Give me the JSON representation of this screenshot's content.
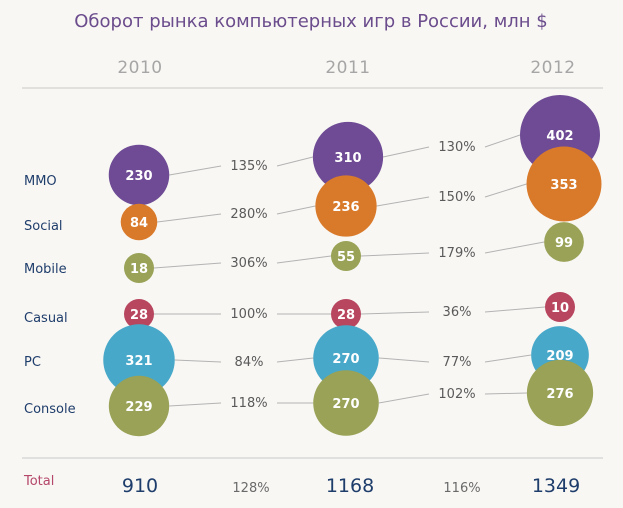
{
  "chart_data": {
    "type": "bubble",
    "title": "Оборот рынка компьютерных игр в России, млн $",
    "years": [
      "2010",
      "2011",
      "2012"
    ],
    "categories": [
      "MMO",
      "Social",
      "Mobile",
      "Casual",
      "PC",
      "Console"
    ],
    "series": [
      {
        "name": "MMO",
        "values": [
          230,
          310,
          402
        ],
        "growth": [
          "135%",
          "130%"
        ],
        "color": "#6e4b94"
      },
      {
        "name": "Social",
        "values": [
          84,
          236,
          353
        ],
        "growth": [
          "280%",
          "150%"
        ],
        "color": "#d97a2b"
      },
      {
        "name": "Mobile",
        "values": [
          18,
          55,
          99
        ],
        "growth": [
          "306%",
          "179%"
        ],
        "color": "#99a256"
      },
      {
        "name": "Casual",
        "values": [
          28,
          28,
          10
        ],
        "growth": [
          "100%",
          "36%"
        ],
        "color": "#b8465f"
      },
      {
        "name": "PC",
        "values": [
          321,
          270,
          209
        ],
        "growth": [
          "84%",
          "77%"
        ],
        "color": "#48a8c9"
      },
      {
        "name": "Console",
        "values": [
          229,
          270,
          276
        ],
        "growth": [
          "118%",
          "102%"
        ],
        "color": "#99a256"
      }
    ],
    "totals": {
      "label": "Total",
      "values": [
        "910",
        "1168",
        "1349"
      ],
      "growth": [
        "128%",
        "116%"
      ]
    }
  }
}
